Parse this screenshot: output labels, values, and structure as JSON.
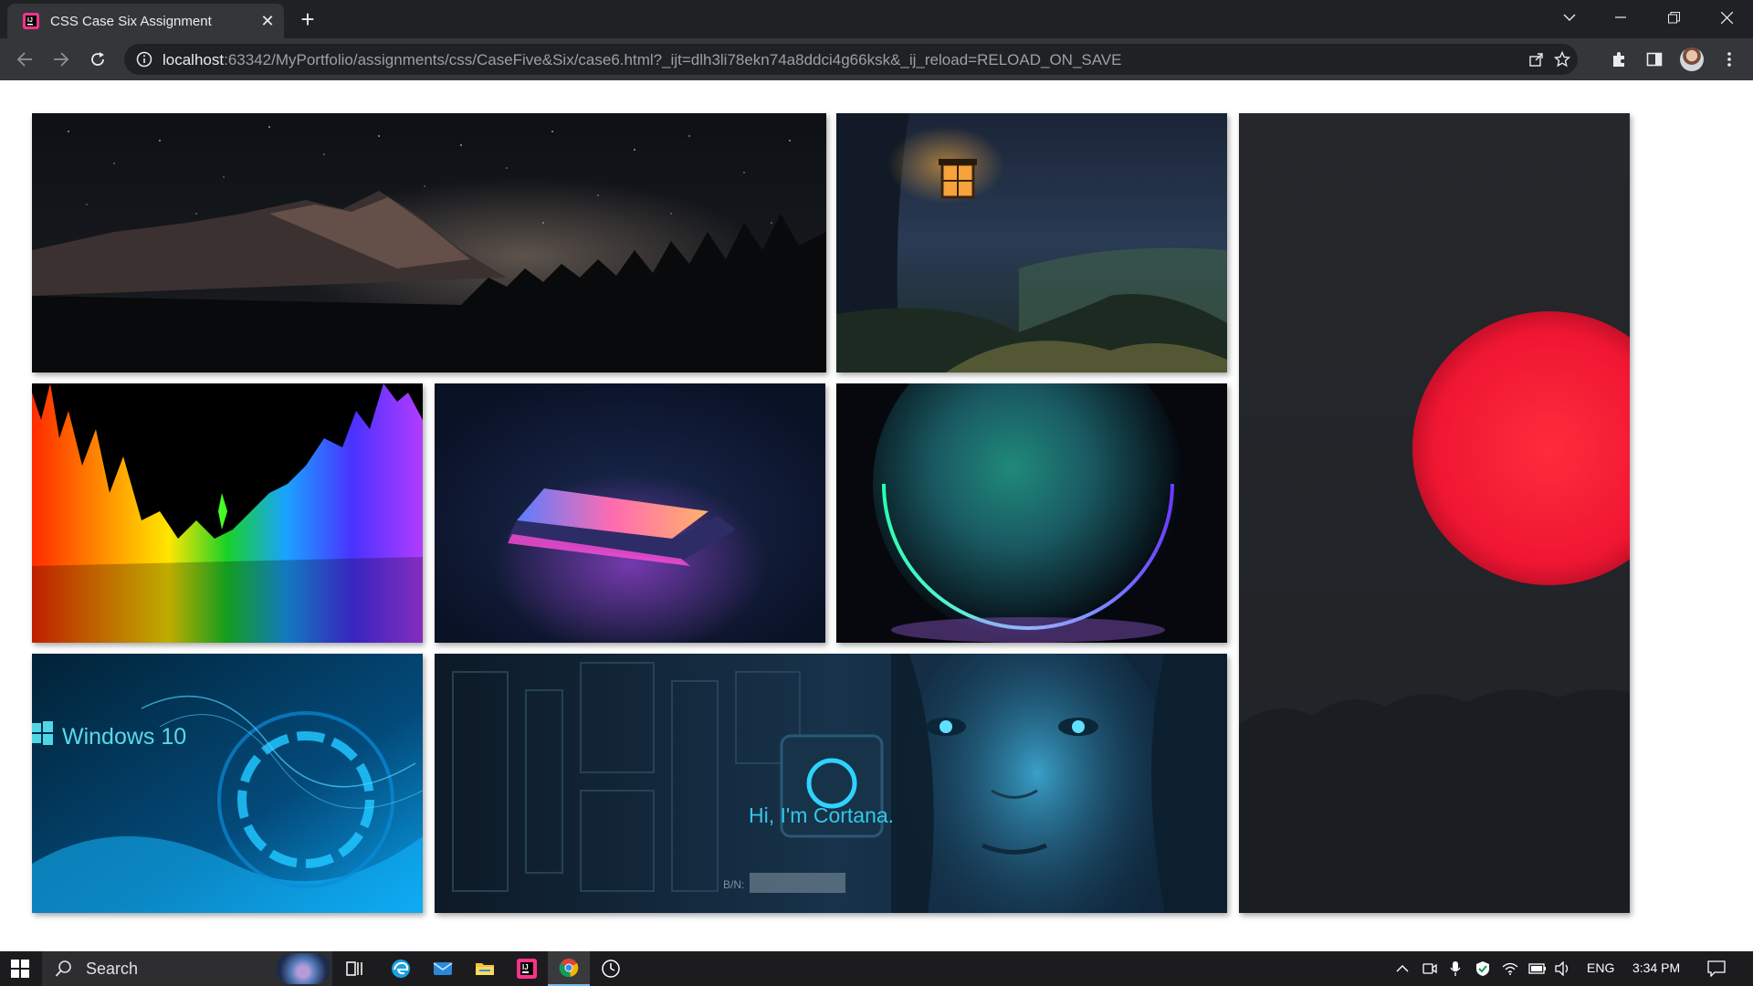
{
  "browser": {
    "tab": {
      "title": "CSS Case Six Assignment"
    },
    "url": {
      "host": "localhost",
      "rest": ":63342/MyPortfolio/assignments/css/CaseFive&Six/case6.html?_ijt=dlh3li78ekn74a8ddci4g66ksk&_ij_reload=RELOAD_ON_SAVE"
    }
  },
  "gallery": {
    "images": [
      {
        "subject": "mountain under starry night sky"
      },
      {
        "subject": "lantern in misty forest"
      },
      {
        "subject": "red sun over dark forest"
      },
      {
        "subject": "rainbow razer equalizer"
      },
      {
        "subject": "glowing laptop"
      },
      {
        "subject": "windows 11 orb"
      },
      {
        "subject": "windows 10 blue wallpaper",
        "caption": "Windows 10"
      },
      {
        "subject": "cortana circuit face",
        "caption": "Hi, I'm Cortana.",
        "serial_label": "B/N:"
      }
    ]
  },
  "taskbar": {
    "search_placeholder": "Search",
    "tray": {
      "language": "ENG",
      "time": "3:34 PM"
    }
  },
  "colors": {
    "chrome_dark": "#202124",
    "chrome_toolbar": "#35363a",
    "taskbar": "#1c1c1f",
    "accent": "#76b9ed"
  }
}
